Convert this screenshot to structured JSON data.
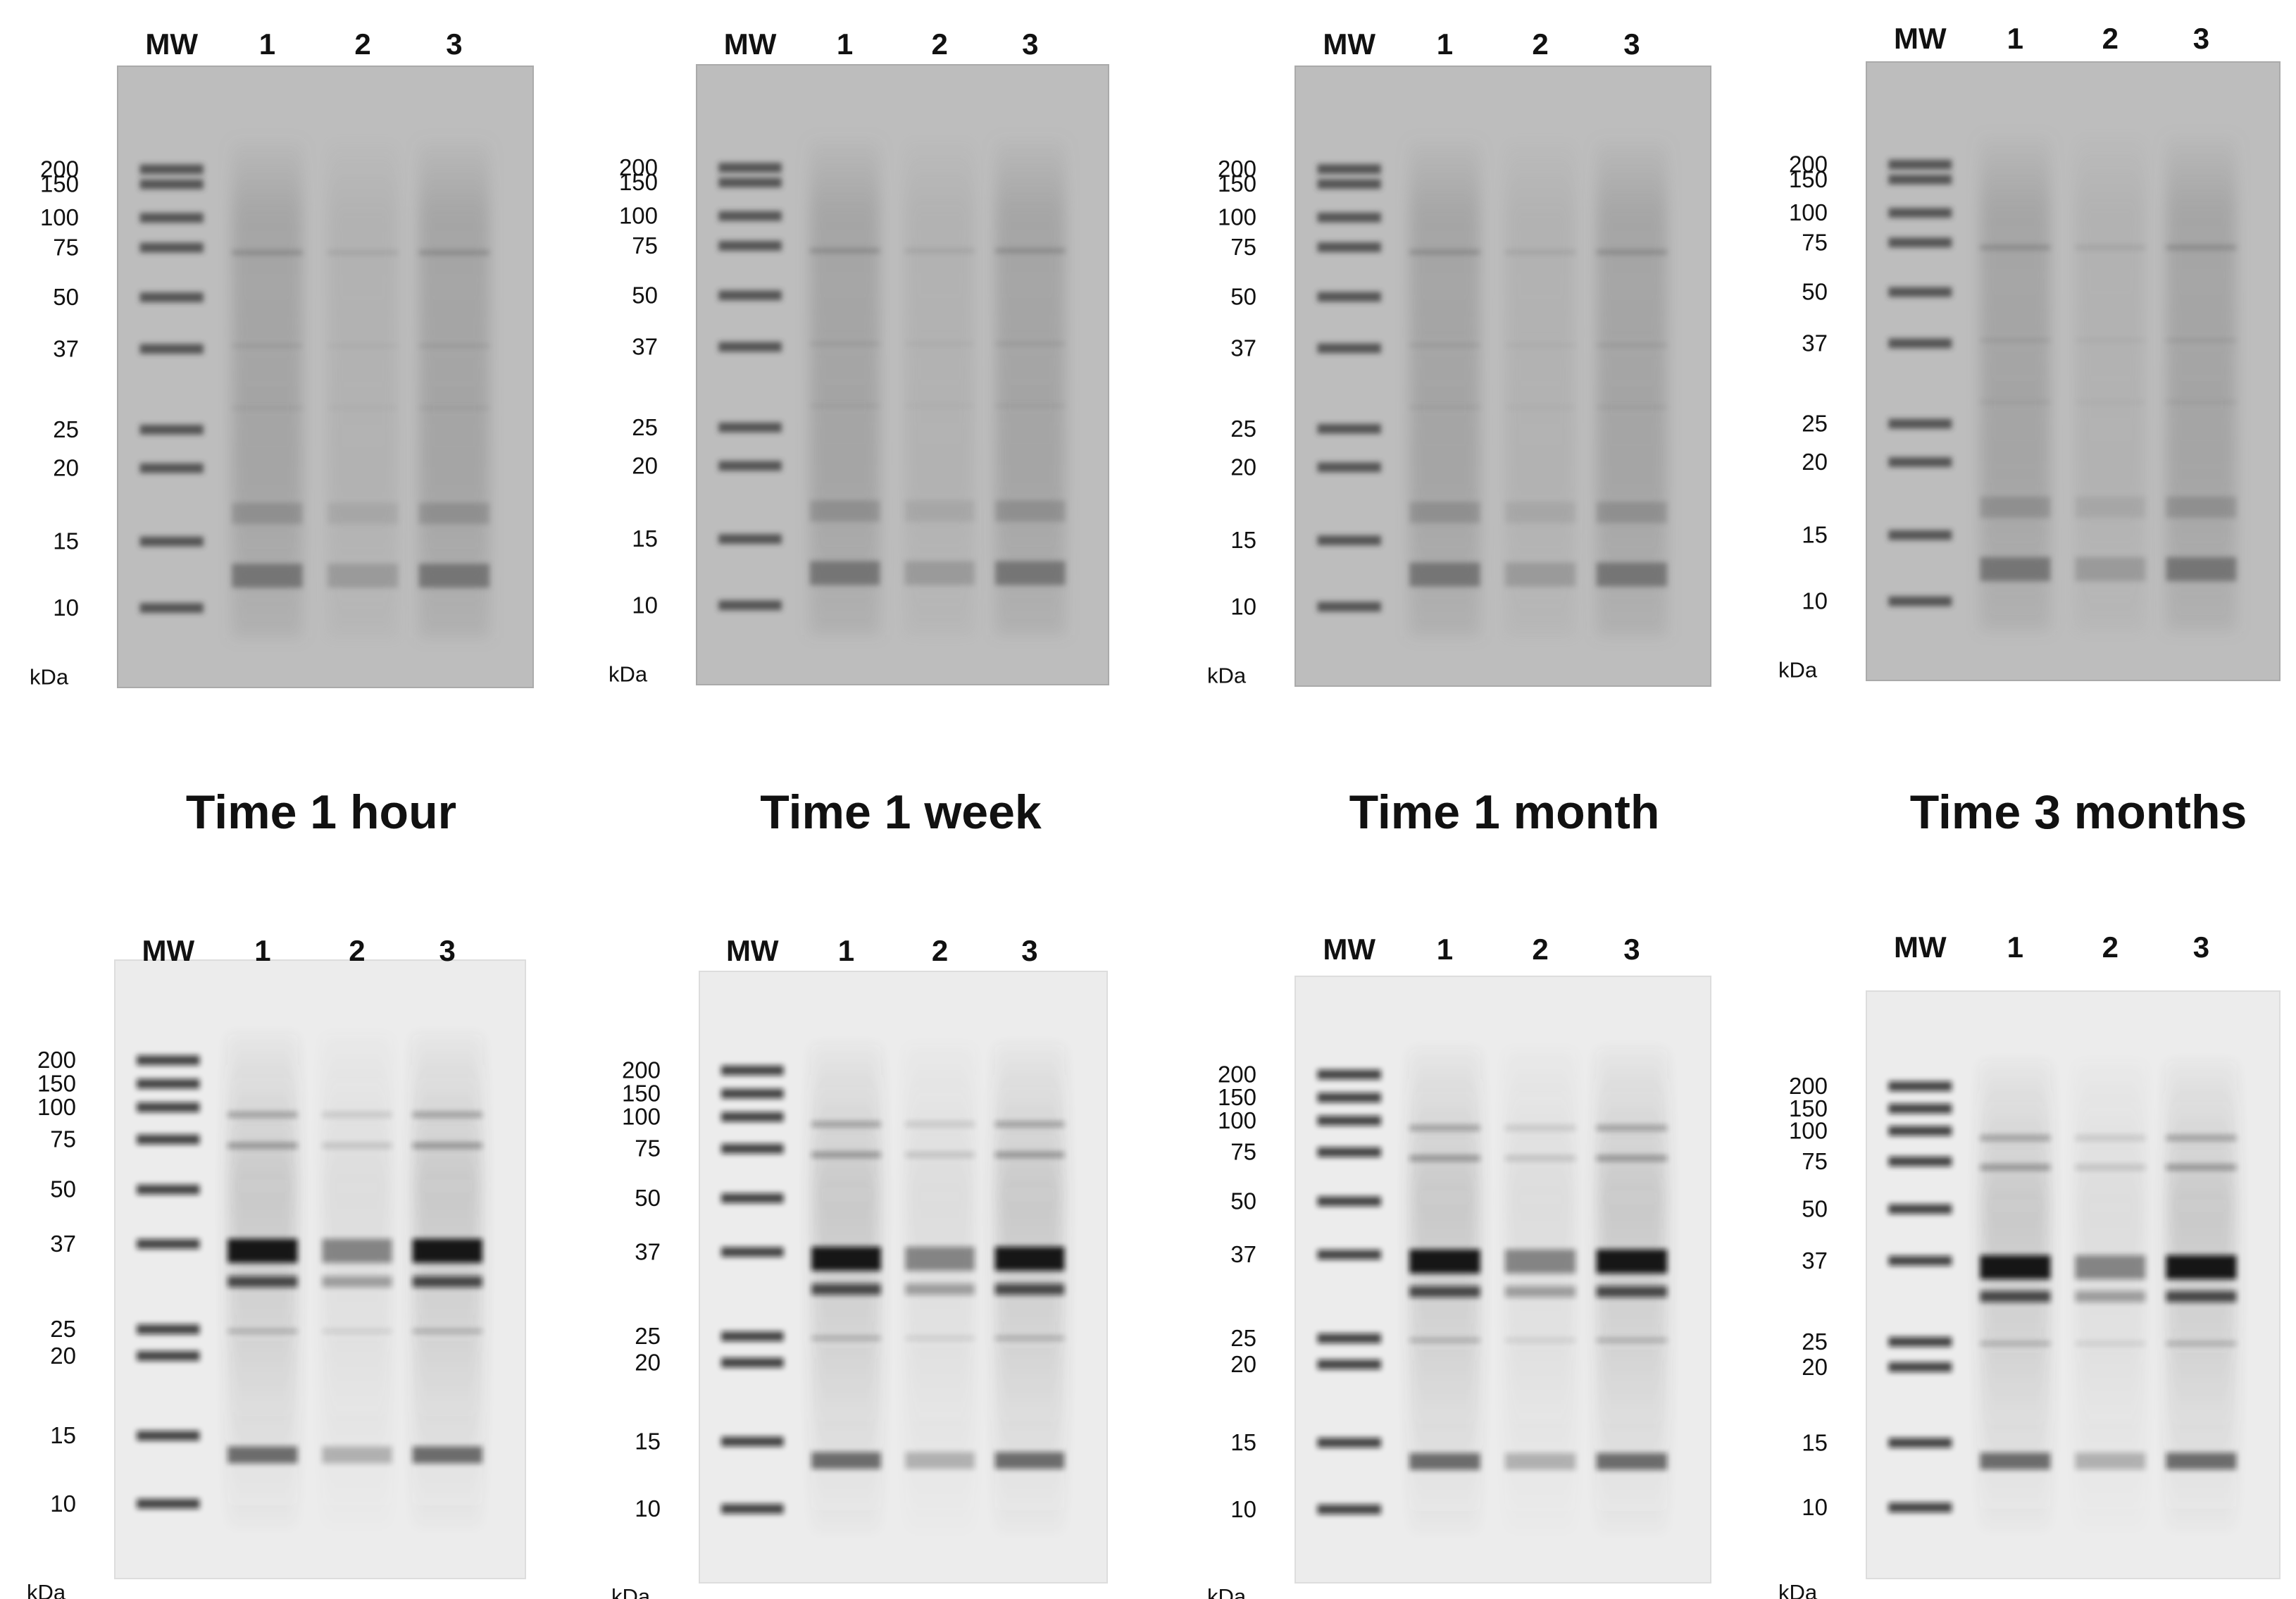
{
  "titles": [
    "Time 1 hour",
    "Time 1 week",
    "Time 1 month",
    "Time 3 months"
  ],
  "panels": [
    {
      "lanes": [
        "MW",
        "1",
        "2",
        "3"
      ],
      "markers": [
        "200",
        "150",
        "100",
        "75",
        "50",
        "37",
        "25",
        "20",
        "15",
        "10"
      ],
      "unit": "kDa"
    },
    {
      "lanes": [
        "MW",
        "1",
        "2",
        "3"
      ],
      "markers": [
        "200",
        "150",
        "100",
        "75",
        "50",
        "37",
        "25",
        "20",
        "15",
        "10"
      ],
      "unit": "kDa"
    },
    {
      "lanes": [
        "MW",
        "1",
        "2",
        "3"
      ],
      "markers": [
        "200",
        "150",
        "100",
        "75",
        "50",
        "37",
        "25",
        "20",
        "15",
        "10"
      ],
      "unit": "kDa"
    },
    {
      "lanes": [
        "MW",
        "1",
        "2",
        "3"
      ],
      "markers": [
        "200",
        "150",
        "100",
        "75",
        "50",
        "37",
        "25",
        "20",
        "15",
        "10"
      ],
      "unit": "kDa"
    },
    {
      "lanes": [
        "MW",
        "1",
        "2",
        "3"
      ],
      "markers": [
        "200",
        "150",
        "100",
        "75",
        "50",
        "37",
        "25",
        "20",
        "15",
        "10"
      ],
      "unit": "kDa"
    },
    {
      "lanes": [
        "MW",
        "1",
        "2",
        "3"
      ],
      "markers": [
        "200",
        "150",
        "100",
        "75",
        "50",
        "37",
        "25",
        "20",
        "15",
        "10"
      ],
      "unit": "kDa"
    },
    {
      "lanes": [
        "MW",
        "1",
        "2",
        "3"
      ],
      "markers": [
        "200",
        "150",
        "100",
        "75",
        "50",
        "37",
        "25",
        "20",
        "15",
        "10"
      ],
      "unit": "kDa"
    },
    {
      "lanes": [
        "MW",
        "1",
        "2",
        "3"
      ],
      "markers": [
        "200",
        "150",
        "100",
        "75",
        "50",
        "37",
        "25",
        "20",
        "15",
        "10"
      ],
      "unit": "kDa"
    }
  ]
}
